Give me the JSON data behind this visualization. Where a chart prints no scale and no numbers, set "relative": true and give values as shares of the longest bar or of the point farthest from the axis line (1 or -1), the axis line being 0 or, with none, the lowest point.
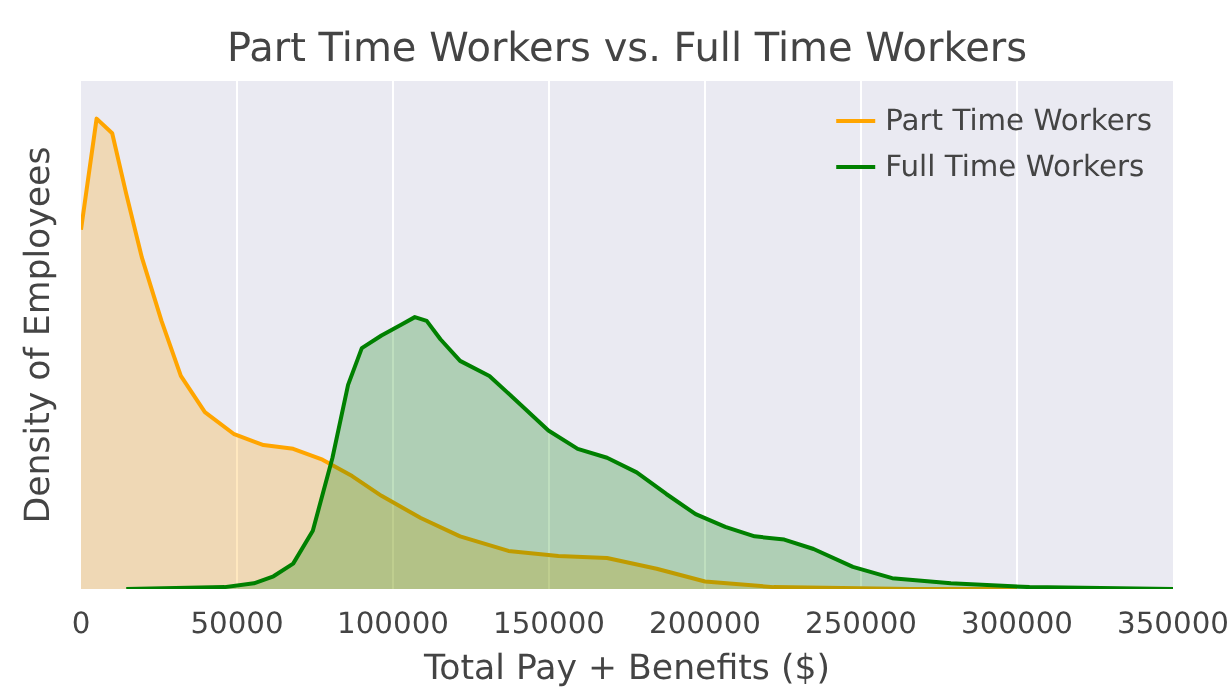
{
  "chart_data": {
    "type": "area",
    "title": "Part Time Workers vs. Full Time Workers",
    "xlabel": "Total Pay + Benefits ($)",
    "ylabel": "Density of Employees",
    "relative": true,
    "xlim": [
      0,
      350000
    ],
    "xticks": [
      0,
      50000,
      100000,
      150000,
      200000,
      250000,
      300000,
      350000
    ],
    "grid": "x",
    "legend": "top right",
    "series": [
      {
        "name": "Part Time Workers",
        "color": "#ffa500",
        "x": [
          0,
          5000,
          10000,
          14500,
          19500,
          25800,
          32000,
          39700,
          49100,
          58500,
          68000,
          77400,
          86900,
          96300,
          108900,
          121500,
          137000,
          153000,
          168600,
          184500,
          200000,
          222000,
          266000,
          300000
        ],
        "values": [
          0.764,
          1.0,
          0.969,
          0.84,
          0.705,
          0.57,
          0.453,
          0.376,
          0.329,
          0.306,
          0.298,
          0.275,
          0.24,
          0.198,
          0.151,
          0.112,
          0.081,
          0.07,
          0.066,
          0.043,
          0.016,
          0.004,
          0,
          0
        ]
      },
      {
        "name": "Full Time Workers",
        "color": "#008000",
        "x": [
          14500,
          46000,
          55400,
          61700,
          68000,
          74300,
          80600,
          85600,
          90000,
          96300,
          102600,
          107000,
          110800,
          115200,
          121500,
          130900,
          140400,
          149800,
          159200,
          168600,
          178100,
          187600,
          197000,
          206500,
          215900,
          225400,
          234800,
          247400,
          260000,
          278800,
          304000,
          350000
        ],
        "values": [
          0,
          0.004,
          0.012,
          0.027,
          0.054,
          0.124,
          0.279,
          0.434,
          0.512,
          0.539,
          0.562,
          0.578,
          0.57,
          0.531,
          0.485,
          0.453,
          0.395,
          0.337,
          0.298,
          0.279,
          0.248,
          0.202,
          0.159,
          0.132,
          0.112,
          0.105,
          0.085,
          0.047,
          0.023,
          0.012,
          0.004,
          0
        ]
      }
    ]
  }
}
